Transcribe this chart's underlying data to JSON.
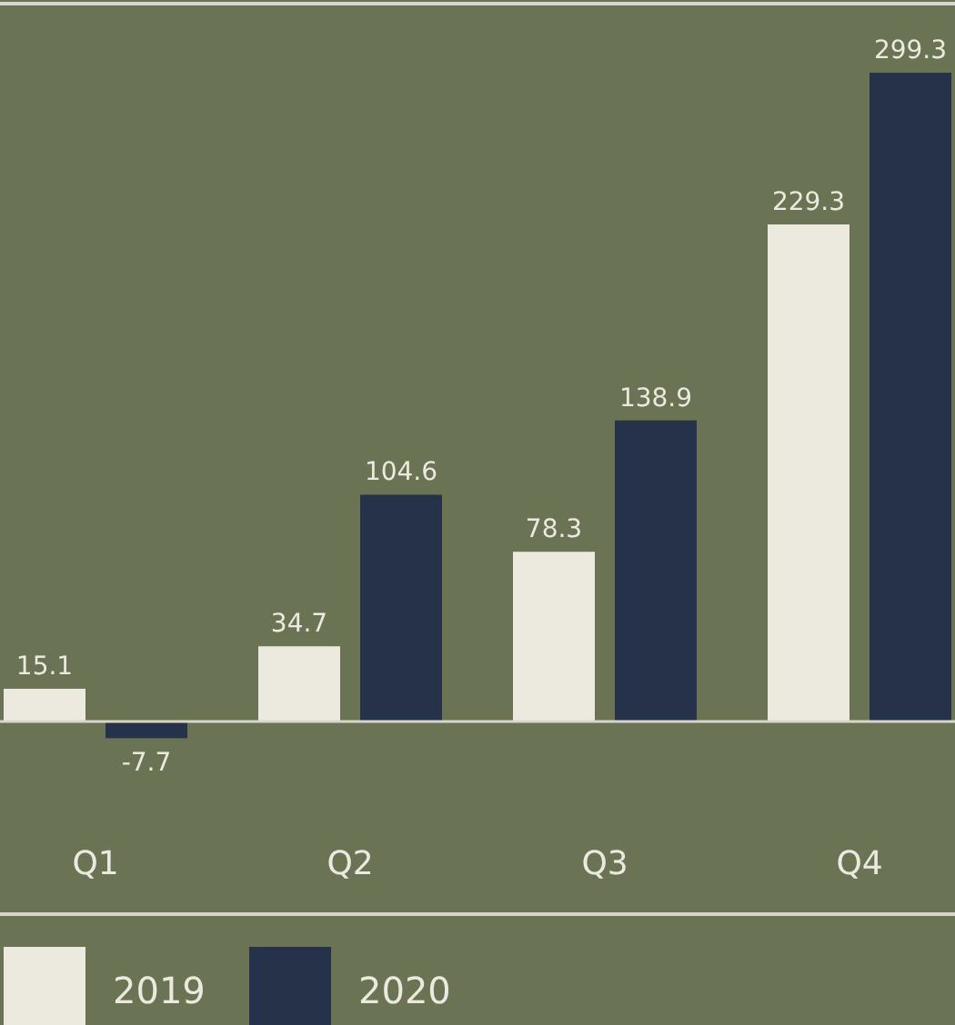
{
  "chart_data": {
    "type": "bar",
    "categories": [
      "Q1",
      "Q2",
      "Q3",
      "Q4"
    ],
    "series": [
      {
        "name": "2019",
        "color": "#ece9df",
        "values": [
          15.1,
          34.7,
          78.3,
          229.3
        ]
      },
      {
        "name": "2020",
        "color": "#25324a",
        "values": [
          -7.7,
          104.6,
          138.9,
          299.3
        ]
      }
    ],
    "data_labels": true,
    "legend": "bottom",
    "grid": false
  }
}
